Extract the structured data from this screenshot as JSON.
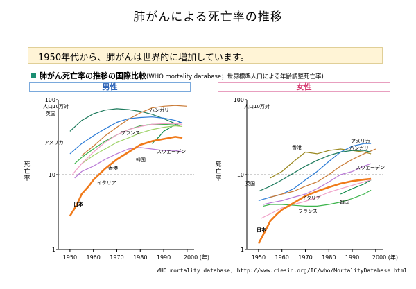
{
  "title": "肺がんによる死亡率の推移",
  "banner": "1950年代から、肺がんは世界的に増加しています。",
  "subtitle": "肺がん死亡率の推移の国際比較",
  "subtitle_note": "(WHO mortality database；世界標準人口による年齢調整死亡率)",
  "footer": "WHO mortality database,  http://www.ciesin.org/IC/who/MortalityDatabase.html",
  "colors": {
    "accent": "#1b8e72",
    "male": "#2c63b7",
    "female": "#d3336b"
  },
  "chart_data": [
    {
      "type": "line",
      "title": "男性",
      "ylabel": "死亡率",
      "unit_label": "人口10万対",
      "yscale": "log",
      "ylim": [
        1,
        100
      ],
      "xlim": [
        1945,
        2003
      ],
      "yticks": [
        "1",
        "10",
        "100"
      ],
      "xticks": [
        "1950",
        "1960",
        "1970",
        "1980",
        "1990",
        "2000 (年)"
      ],
      "series": [
        {
          "name": "英国",
          "color": "#1c7a5c",
          "x": [
            1950,
            1955,
            1960,
            1965,
            1970,
            1975,
            1980,
            1985,
            1990,
            1995,
            1997
          ],
          "values": [
            38,
            53,
            65,
            73,
            76,
            74,
            70,
            64,
            56,
            48,
            45
          ]
        },
        {
          "name": "ハンガリー",
          "color": "#c97a35",
          "x": [
            1955,
            1960,
            1965,
            1970,
            1975,
            1980,
            1985,
            1990,
            1995,
            2000
          ],
          "values": [
            18,
            24,
            33,
            43,
            55,
            67,
            78,
            82,
            84,
            82
          ]
        },
        {
          "name": "アメリカ",
          "color": "#2b7bd6",
          "x": [
            1950,
            1955,
            1960,
            1965,
            1970,
            1975,
            1980,
            1985,
            1990,
            1995,
            1998
          ],
          "values": [
            19,
            26,
            33,
            41,
            50,
            56,
            58,
            59,
            57,
            53,
            49
          ]
        },
        {
          "name": "フランス",
          "color": "#3cb44b",
          "x": [
            1952,
            1955,
            1960,
            1965,
            1970,
            1975,
            1980,
            1985,
            1990,
            1995,
            1997
          ],
          "values": [
            14,
            17,
            22,
            28,
            34,
            40,
            45,
            47,
            47,
            46,
            45
          ]
        },
        {
          "name": "韓国",
          "color": "#0e8a4a",
          "x": [
            1985,
            1988,
            1990,
            1993,
            1995,
            1997
          ],
          "values": [
            26,
            32,
            38,
            43,
            47,
            50
          ]
        },
        {
          "name": "スウェーデン",
          "color": "#b97ad6",
          "x": [
            1952,
            1955,
            1960,
            1965,
            1970,
            1975,
            1980,
            1985,
            1990,
            1995,
            1998
          ],
          "values": [
            9,
            11,
            13,
            16,
            19,
            22,
            23,
            22,
            21,
            21,
            20
          ]
        },
        {
          "name": "香港",
          "color": "#9fd36a",
          "x": [
            1955,
            1960,
            1965,
            1970,
            1975,
            1980,
            1985,
            1990,
            1995,
            1998
          ],
          "values": [
            14,
            18,
            22,
            27,
            31,
            36,
            40,
            43,
            45,
            44
          ]
        },
        {
          "name": "イタリア",
          "color": "#f0a0c8",
          "x": [
            1951,
            1955,
            1960,
            1965,
            1970,
            1975,
            1980,
            1985,
            1990,
            1995,
            1998
          ],
          "values": [
            10,
            14,
            20,
            27,
            34,
            40,
            44,
            47,
            48,
            48,
            47
          ]
        },
        {
          "name": "日本",
          "color": "#f07a1a",
          "x": [
            1950,
            1953,
            1955,
            1958,
            1960,
            1965,
            1970,
            1975,
            1980,
            1985,
            1990,
            1995,
            1998
          ],
          "values": [
            2.8,
            4,
            5.5,
            7,
            8.5,
            12,
            16,
            20,
            25,
            28,
            30,
            32,
            31
          ]
        }
      ],
      "labels": [
        "人口10万対",
        "英国",
        "ハンガリー",
        "アメリカ",
        "フランス",
        "韓国",
        "スウェーデン",
        "香港",
        "イタリア",
        "日本"
      ]
    },
    {
      "type": "line",
      "title": "女性",
      "ylabel": "死亡率",
      "unit_label": "人口10万対",
      "yscale": "log",
      "ylim": [
        1,
        100
      ],
      "xlim": [
        1945,
        2003
      ],
      "yticks": [
        "1",
        "10",
        "100"
      ],
      "xticks": [
        "1950",
        "1960",
        "1970",
        "1980",
        "1990",
        "2000 (年)"
      ],
      "series": [
        {
          "name": "香港",
          "color": "#9a8820",
          "x": [
            1955,
            1960,
            1965,
            1970,
            1975,
            1980,
            1985,
            1990,
            1995,
            1998
          ],
          "values": [
            9,
            11,
            15,
            20,
            19,
            21,
            22,
            21,
            20,
            19
          ]
        },
        {
          "name": "アメリカ",
          "color": "#2b7bd6",
          "x": [
            1950,
            1955,
            1960,
            1965,
            1970,
            1975,
            1980,
            1985,
            1990,
            1995,
            1998
          ],
          "values": [
            4.5,
            5,
            5.5,
            6.5,
            8.5,
            11,
            15,
            20,
            24,
            26,
            26
          ]
        },
        {
          "name": "ハンガリー",
          "color": "#c97a35",
          "x": [
            1955,
            1960,
            1965,
            1970,
            1975,
            1980,
            1985,
            1990,
            1995,
            2000
          ],
          "values": [
            5,
            5.5,
            6,
            7,
            8,
            10,
            13,
            16,
            19,
            22
          ]
        },
        {
          "name": "英国",
          "color": "#1c7a5c",
          "x": [
            1950,
            1955,
            1960,
            1965,
            1970,
            1975,
            1980,
            1985,
            1990,
            1995,
            1998
          ],
          "values": [
            6,
            7,
            8.5,
            10.5,
            13,
            15.5,
            18,
            20,
            21,
            21,
            20
          ]
        },
        {
          "name": "スウェーデン",
          "color": "#b97ad6",
          "x": [
            1952,
            1955,
            1960,
            1965,
            1970,
            1975,
            1980,
            1985,
            1990,
            1995,
            1998
          ],
          "values": [
            4,
            4.2,
            4.5,
            5,
            5.5,
            6.5,
            8,
            10,
            11,
            13,
            14
          ]
        },
        {
          "name": "韓国",
          "color": "#0e8a4a",
          "x": [
            1985,
            1990,
            1995,
            1998
          ],
          "values": [
            5.5,
            6.5,
            7.5,
            8.5
          ]
        },
        {
          "name": "イタリア",
          "color": "#f0a0c8",
          "x": [
            1951,
            1955,
            1960,
            1965,
            1970,
            1975,
            1980,
            1985,
            1990,
            1995,
            1998
          ],
          "values": [
            2.6,
            3,
            3.6,
            4,
            4.4,
            5,
            5.8,
            6.5,
            7.2,
            8,
            8.5
          ]
        },
        {
          "name": "フランス",
          "color": "#3cb44b",
          "x": [
            1952,
            1955,
            1960,
            1965,
            1970,
            1975,
            1980,
            1985,
            1990,
            1995,
            1998
          ],
          "values": [
            3.8,
            4,
            4,
            3.9,
            3.8,
            3.8,
            4,
            4.3,
            4.8,
            5.5,
            6.2
          ]
        },
        {
          "name": "日本",
          "color": "#f07a1a",
          "x": [
            1950,
            1953,
            1955,
            1958,
            1960,
            1965,
            1970,
            1975,
            1980,
            1985,
            1990,
            1995,
            1998
          ],
          "values": [
            1.2,
            1.8,
            2.4,
            3,
            3.4,
            4.2,
            5.2,
            6,
            6.8,
            7.6,
            8.2,
            8.6,
            8.8
          ]
        }
      ],
      "labels": [
        "人口10万対",
        "香港",
        "アメリカ",
        "ハンガリー",
        "英国",
        "スウェーデン",
        "イタリア",
        "韓国",
        "フランス",
        "日本"
      ]
    }
  ]
}
